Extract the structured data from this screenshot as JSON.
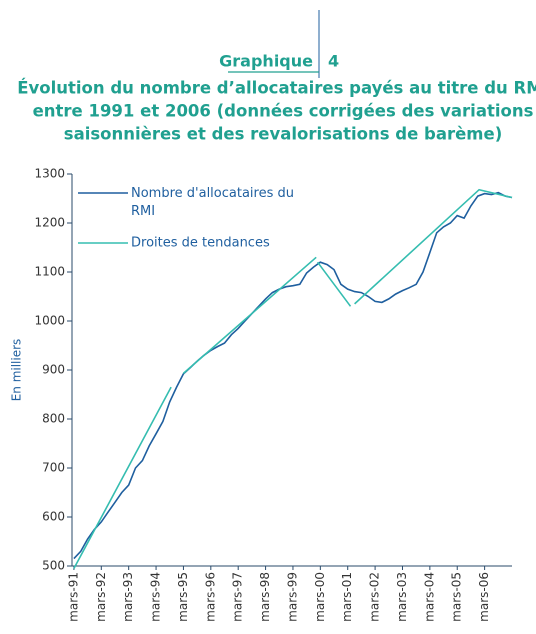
{
  "header": {
    "label": "Graphique",
    "number": "4"
  },
  "chart_data": {
    "type": "line",
    "title": [
      "Évolution du nombre d’allocataires payés au titre du RMI",
      "entre 1991 et 2006 (données corrigées des variations",
      "saisonnières et des revalorisations de barème)"
    ],
    "ylabel": "En milliers",
    "xlim": [
      1990.93,
      2007.0
    ],
    "ylim": [
      500,
      1300
    ],
    "yticks": [
      500,
      600,
      700,
      800,
      900,
      1000,
      1100,
      1200,
      1300
    ],
    "xticks": [
      {
        "value": 1991,
        "label": "mars-91"
      },
      {
        "value": 1992,
        "label": "mars-92"
      },
      {
        "value": 1993,
        "label": "mars-93"
      },
      {
        "value": 1994,
        "label": "mars-94"
      },
      {
        "value": 1995,
        "label": "mars-95"
      },
      {
        "value": 1996,
        "label": "mars-96"
      },
      {
        "value": 1997,
        "label": "mars-97"
      },
      {
        "value": 1998,
        "label": "mars-98"
      },
      {
        "value": 1999,
        "label": "mars-99"
      },
      {
        "value": 2000,
        "label": "mars-00"
      },
      {
        "value": 2001,
        "label": "mars-01"
      },
      {
        "value": 2002,
        "label": "mars-02"
      },
      {
        "value": 2003,
        "label": "mars-03"
      },
      {
        "value": 2004,
        "label": "mars-04"
      },
      {
        "value": 2005,
        "label": "mars-05"
      },
      {
        "value": 2006,
        "label": "mars-06"
      }
    ],
    "legend": "upper left",
    "series": [
      {
        "name": "Nombre d'allocataires du RMI",
        "color": "#1f5f9f",
        "x": [
          1991,
          1991.25,
          1991.5,
          1991.75,
          1992,
          1992.25,
          1992.5,
          1992.75,
          1993,
          1993.25,
          1993.5,
          1993.75,
          1994,
          1994.25,
          1994.5,
          1994.75,
          1995,
          1995.25,
          1995.5,
          1995.75,
          1996,
          1996.25,
          1996.5,
          1996.75,
          1997,
          1997.25,
          1997.5,
          1997.75,
          1998,
          1998.25,
          1998.5,
          1998.75,
          1999,
          1999.25,
          1999.5,
          1999.75,
          2000,
          2000.25,
          2000.5,
          2000.75,
          2001,
          2001.25,
          2001.5,
          2001.75,
          2002,
          2002.25,
          2002.5,
          2002.75,
          2003,
          2003.25,
          2003.5,
          2003.75,
          2004,
          2004.25,
          2004.5,
          2004.75,
          2005,
          2005.25,
          2005.5,
          2005.75,
          2006,
          2006.25,
          2006.5,
          2006.75,
          2007
        ],
        "values": [
          515,
          530,
          555,
          575,
          590,
          610,
          630,
          650,
          665,
          700,
          715,
          745,
          770,
          795,
          835,
          865,
          892,
          905,
          918,
          930,
          940,
          948,
          955,
          972,
          985,
          1000,
          1015,
          1030,
          1045,
          1058,
          1065,
          1070,
          1072,
          1075,
          1098,
          1110,
          1120,
          1115,
          1105,
          1075,
          1065,
          1060,
          1058,
          1050,
          1040,
          1038,
          1045,
          1055,
          1062,
          1068,
          1075,
          1100,
          1140,
          1180,
          1192,
          1200,
          1215,
          1210,
          1235,
          1255,
          1260,
          1258,
          1262,
          1255,
          1252
        ]
      },
      {
        "name": "Droites de tendances",
        "color": "#35bdb0",
        "x": [
          1991,
          1994.55,
          null,
          1995.0,
          1999.85,
          null,
          1999.9,
          2001.1,
          null,
          2001.25,
          2005.8,
          2007.0
        ],
        "values": [
          495,
          865,
          null,
          893,
          1130,
          null,
          1120,
          1030,
          null,
          1035,
          1268,
          1252
        ]
      }
    ]
  }
}
